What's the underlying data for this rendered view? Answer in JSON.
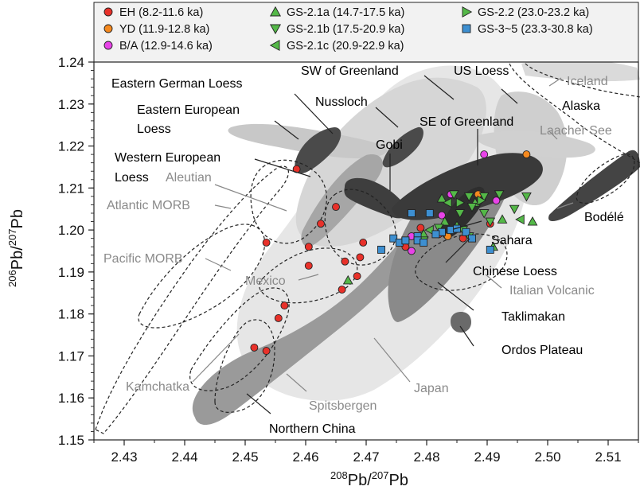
{
  "chart_data": {
    "type": "scatter",
    "xlabel": {
      "sup": "208",
      "base": "Pb/",
      "sup2": "207",
      "base2": "Pb"
    },
    "ylabel": {
      "sup": "206",
      "base": "Pb/",
      "sup2": "207",
      "base2": "Pb"
    },
    "xlim": [
      2.425,
      2.515
    ],
    "ylim": [
      1.15,
      1.24
    ],
    "x_ticks": [
      "2.43",
      "2.44",
      "2.45",
      "2.46",
      "2.47",
      "2.48",
      "2.49",
      "2.50",
      "2.51"
    ],
    "y_ticks": [
      "1.15",
      "1.16",
      "1.17",
      "1.18",
      "1.19",
      "1.20",
      "1.21",
      "1.22",
      "1.23",
      "1.24"
    ],
    "legend_position": "top",
    "series": [
      {
        "name": "EH (8.2-11.6 ka)",
        "marker": "circle",
        "color": "#e8312a",
        "points": [
          [
            2.4585,
            1.2145
          ],
          [
            2.4535,
            1.197
          ],
          [
            2.4605,
            1.196
          ],
          [
            2.465,
            1.2055
          ],
          [
            2.4625,
            1.2015
          ],
          [
            2.4605,
            1.1915
          ],
          [
            2.4695,
            1.197
          ],
          [
            2.469,
            1.1935
          ],
          [
            2.4665,
            1.1925
          ],
          [
            2.4685,
            1.189
          ],
          [
            2.466,
            1.1858
          ],
          [
            2.4565,
            1.182
          ],
          [
            2.4555,
            1.179
          ],
          [
            2.4515,
            1.172
          ],
          [
            2.4535,
            1.1712
          ],
          [
            2.479,
            1.2005
          ],
          [
            2.482,
            1.199
          ],
          [
            2.486,
            1.198
          ],
          [
            2.4905,
            1.2015
          ],
          [
            2.4765,
            1.196
          ]
        ]
      },
      {
        "name": "YD (11.9-12.8 ka)",
        "marker": "circle",
        "color": "#f5891f",
        "points": [
          [
            2.4965,
            1.218
          ],
          [
            2.4885,
            1.2085
          ],
          [
            2.4835,
            1.1985
          ]
        ]
      },
      {
        "name": "B/A (12.9-14.6 ka)",
        "marker": "circle",
        "color": "#e843e8",
        "points": [
          [
            2.4895,
            1.218
          ],
          [
            2.484,
            1.2085
          ],
          [
            2.4915,
            1.207
          ],
          [
            2.4775,
            1.1985
          ],
          [
            2.4775,
            1.195
          ],
          [
            2.4825,
            1.2035
          ]
        ]
      },
      {
        "name": "GS-2.1a (14.7-17.5 ka)",
        "marker": "triangle-up",
        "color": "#54b848",
        "points": [
          [
            2.467,
            1.188
          ],
          [
            2.4975,
            1.202
          ],
          [
            2.4795,
            1.199
          ],
          [
            2.4825,
            1.2075
          ],
          [
            2.485,
            1.201
          ],
          [
            2.488,
            1.2065
          ],
          [
            2.4925,
            1.2025
          ],
          [
            2.491,
            1.196
          ],
          [
            2.483,
            1.202
          ]
        ]
      },
      {
        "name": "GS-2.1b (17.5-20.9 ka)",
        "marker": "triangle-down",
        "color": "#54b848",
        "points": [
          [
            2.4845,
            1.2085
          ],
          [
            2.487,
            1.208
          ],
          [
            2.4895,
            1.208
          ],
          [
            2.492,
            1.2085
          ],
          [
            2.4965,
            1.208
          ],
          [
            2.4945,
            1.205
          ],
          [
            2.4875,
            1.2055
          ],
          [
            2.4895,
            1.204
          ],
          [
            2.4855,
            1.204
          ],
          [
            2.4905,
            1.202
          ],
          [
            2.487,
            1.1985
          ],
          [
            2.482,
            1.2005
          ],
          [
            2.4795,
            1.1975
          ],
          [
            2.486,
            1.2
          ]
        ]
      },
      {
        "name": "GS-2.1c (20.9-22.9 ka)",
        "marker": "triangle-left",
        "color": "#54b848",
        "points": [
          [
            2.4955,
            1.2025
          ],
          [
            2.4835,
            1.2065
          ],
          [
            2.4805,
            1.2
          ]
        ]
      },
      {
        "name": "GS-2.2 (23.0-23.2 ka)",
        "marker": "triangle-right",
        "color": "#54b848",
        "points": [
          [
            2.4855,
            1.2065
          ],
          [
            2.489,
            1.207
          ]
        ]
      },
      {
        "name": "GS-3~5 (23.3-30.8 ka)",
        "marker": "square",
        "color": "#3d8fd1",
        "points": [
          [
            2.4775,
            1.204
          ],
          [
            2.4805,
            1.204
          ],
          [
            2.4745,
            1.198
          ],
          [
            2.4755,
            1.197
          ],
          [
            2.4725,
            1.1953
          ],
          [
            2.4765,
            1.1975
          ],
          [
            2.4785,
            1.1985
          ],
          [
            2.4785,
            1.1975
          ],
          [
            2.4795,
            1.197
          ],
          [
            2.4825,
            1.1995
          ],
          [
            2.484,
            1.2
          ],
          [
            2.485,
            1.2003
          ],
          [
            2.4865,
            1.1995
          ],
          [
            2.4875,
            1.198
          ],
          [
            2.4905,
            1.1953
          ],
          [
            2.4815,
            1.199
          ]
        ]
      }
    ],
    "region_labels": [
      {
        "text": "Eastern German Loess",
        "color": "#000000"
      },
      {
        "text": "SW of Greenland",
        "color": "#000000"
      },
      {
        "text": "US Loess",
        "color": "#000000"
      },
      {
        "text": "Iceland",
        "color": "#8a8a8a"
      },
      {
        "text": "Alaska",
        "color": "#000000"
      },
      {
        "text": "Eastern European",
        "color": "#000000"
      },
      {
        "text": "Loess",
        "color": "#000000"
      },
      {
        "text": "Nussloch",
        "color": "#000000"
      },
      {
        "text": "SE of Greenland",
        "color": "#000000"
      },
      {
        "text": "Laacher See",
        "color": "#8a8a8a"
      },
      {
        "text": "Gobi",
        "color": "#000000"
      },
      {
        "text": "Western European",
        "color": "#000000"
      },
      {
        "text": "Loess",
        "color": "#000000"
      },
      {
        "text": "Aleutian",
        "color": "#8a8a8a"
      },
      {
        "text": "Atlantic MORB",
        "color": "#8a8a8a"
      },
      {
        "text": "Bodélé",
        "color": "#000000"
      },
      {
        "text": "Pacific MORB",
        "color": "#8a8a8a"
      },
      {
        "text": "Sahara",
        "color": "#000000"
      },
      {
        "text": "Chinese Loess",
        "color": "#000000"
      },
      {
        "text": "Mexico",
        "color": "#8a8a8a"
      },
      {
        "text": "Italian Volcanic",
        "color": "#8a8a8a"
      },
      {
        "text": "Taklimakan",
        "color": "#000000"
      },
      {
        "text": "Ordos Plateau",
        "color": "#000000"
      },
      {
        "text": "Kamchatka",
        "color": "#8a8a8a"
      },
      {
        "text": "Japan",
        "color": "#8a8a8a"
      },
      {
        "text": "Spitsbergen",
        "color": "#8a8a8a"
      },
      {
        "text": "Northern China",
        "color": "#000000"
      }
    ]
  }
}
